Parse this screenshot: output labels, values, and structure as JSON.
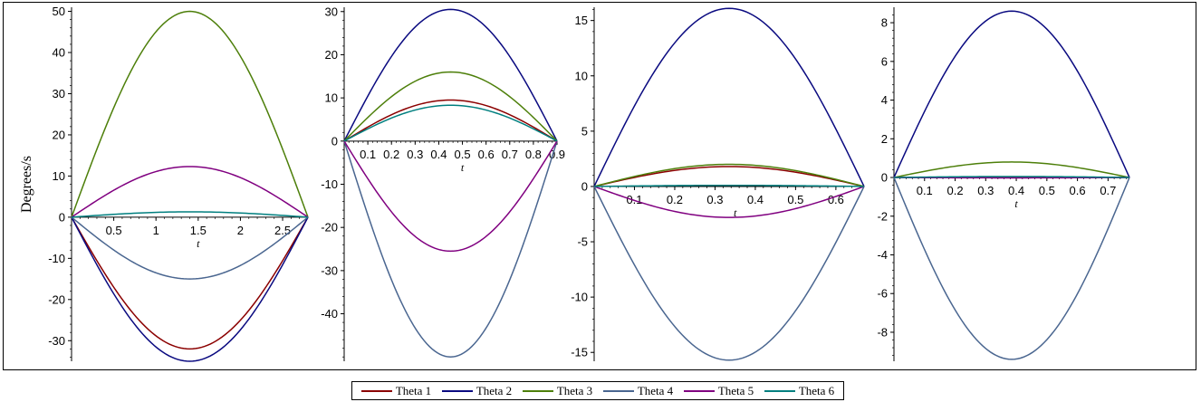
{
  "colors": {
    "theta1": "#8b0000",
    "theta2": "#0a0a80",
    "theta3": "#4d7f0a",
    "theta4": "#4a6690",
    "theta5": "#800080",
    "theta6": "#007f7f"
  },
  "legend": [
    {
      "label": "Theta 1",
      "color_key": "theta1"
    },
    {
      "label": "Theta 2",
      "color_key": "theta2"
    },
    {
      "label": "Theta 3",
      "color_key": "theta3"
    },
    {
      "label": "Theta 4",
      "color_key": "theta4"
    },
    {
      "label": "Theta 5",
      "color_key": "theta5"
    },
    {
      "label": "Theta 6",
      "color_key": "theta6"
    }
  ],
  "chart_data": [
    {
      "type": "line",
      "ylabel": "Degrees/s",
      "xlabel": "t",
      "xlim": [
        0,
        2.8
      ],
      "ylim": [
        -35,
        51
      ],
      "x_ticks": [
        "0.5",
        "1",
        "1.5",
        "2",
        "2.5"
      ],
      "y_ticks": [
        "50",
        "40",
        "30",
        "20",
        "10",
        "0",
        "-10",
        "-20",
        "-30"
      ],
      "x_end": 2.8,
      "series": [
        {
          "name": "Theta 1",
          "color_key": "theta1",
          "peak": -32
        },
        {
          "name": "Theta 2",
          "color_key": "theta2",
          "peak": -35
        },
        {
          "name": "Theta 3",
          "color_key": "theta3",
          "peak": 50
        },
        {
          "name": "Theta 4",
          "color_key": "theta4",
          "peak": -15
        },
        {
          "name": "Theta 5",
          "color_key": "theta5",
          "peak": 12.3
        },
        {
          "name": "Theta 6",
          "color_key": "theta6",
          "peak": 1.3
        }
      ]
    },
    {
      "type": "line",
      "ylabel": "",
      "xlabel": "t",
      "xlim": [
        0,
        0.9
      ],
      "ylim": [
        -51,
        31
      ],
      "x_ticks": [
        "0.1",
        "0.2",
        "0.3",
        "0.4",
        "0.5",
        "0.6",
        "0.7",
        "0.8",
        "0.9"
      ],
      "y_ticks": [
        "30",
        "20",
        "10",
        "0",
        "-10",
        "-20",
        "-30",
        "-40"
      ],
      "x_end": 0.9,
      "series": [
        {
          "name": "Theta 1",
          "color_key": "theta1",
          "peak": 9.5
        },
        {
          "name": "Theta 2",
          "color_key": "theta2",
          "peak": 30.5
        },
        {
          "name": "Theta 3",
          "color_key": "theta3",
          "peak": 16
        },
        {
          "name": "Theta 4",
          "color_key": "theta4",
          "peak": -50
        },
        {
          "name": "Theta 5",
          "color_key": "theta5",
          "peak": -25.5
        },
        {
          "name": "Theta 6",
          "color_key": "theta6",
          "peak": 8.3
        }
      ]
    },
    {
      "type": "line",
      "ylabel": "",
      "xlabel": "t",
      "xlim": [
        0,
        0.67
      ],
      "ylim": [
        -15.8,
        16.2
      ],
      "x_ticks": [
        "0.1",
        "0.2",
        "0.3",
        "0.4",
        "0.5",
        "0.6"
      ],
      "y_ticks": [
        "15",
        "10",
        "5",
        "0",
        "-5",
        "-10",
        "-15"
      ],
      "x_end": 0.67,
      "series": [
        {
          "name": "Theta 1",
          "color_key": "theta1",
          "peak": 1.8
        },
        {
          "name": "Theta 2",
          "color_key": "theta2",
          "peak": 16.1
        },
        {
          "name": "Theta 3",
          "color_key": "theta3",
          "peak": 2.0
        },
        {
          "name": "Theta 4",
          "color_key": "theta4",
          "peak": -15.7
        },
        {
          "name": "Theta 5",
          "color_key": "theta5",
          "peak": -2.8
        },
        {
          "name": "Theta 6",
          "color_key": "theta6",
          "peak": 0.1
        }
      ]
    },
    {
      "type": "line",
      "ylabel": "",
      "xlabel": "t",
      "xlim": [
        0,
        0.77
      ],
      "ylim": [
        -9.5,
        8.8
      ],
      "x_ticks": [
        "0.1",
        "0.2",
        "0.3",
        "0.4",
        "0.5",
        "0.6",
        "0.7"
      ],
      "y_ticks": [
        "8",
        "6",
        "4",
        "2",
        "0",
        "-2",
        "-4",
        "-6",
        "-8"
      ],
      "x_end": 0.77,
      "series": [
        {
          "name": "Theta 1",
          "color_key": "theta1",
          "peak": 0.02
        },
        {
          "name": "Theta 2",
          "color_key": "theta2",
          "peak": 8.6
        },
        {
          "name": "Theta 3",
          "color_key": "theta3",
          "peak": 0.8
        },
        {
          "name": "Theta 4",
          "color_key": "theta4",
          "peak": -9.4
        },
        {
          "name": "Theta 5",
          "color_key": "theta5",
          "peak": -0.02
        },
        {
          "name": "Theta 6",
          "color_key": "theta6",
          "peak": 0.05
        }
      ]
    }
  ]
}
